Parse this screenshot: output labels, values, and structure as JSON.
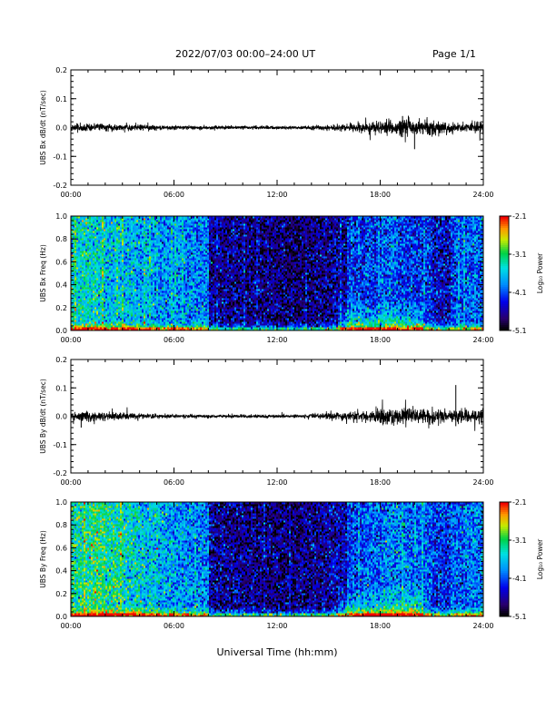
{
  "header": {
    "title": "2022/07/03  00:00–24:00 UT",
    "page": "Page 1/1"
  },
  "footer": {
    "xlabel": "Universal Time (hh:mm)"
  },
  "colors": {
    "trace": "#000000",
    "frame": "#000000",
    "background": "#ffffff"
  },
  "chart_data": [
    {
      "type": "line",
      "ylabel": "UBS Bx dB/dt (nT/sec)",
      "xlim": [
        0,
        24
      ],
      "ylim": [
        -0.2,
        0.2
      ],
      "x_ticks": [
        "00:00",
        "06:00",
        "12:00",
        "18:00",
        "24:00"
      ],
      "y_ticks": [
        "-0.2",
        "-0.1",
        "0.0",
        "0.1",
        "0.2"
      ],
      "series": [
        {
          "x": [
            0,
            1.5,
            3,
            4.5,
            6,
            7.5,
            9,
            10.5,
            12,
            13.5,
            15,
            16.5,
            17.5,
            18.5,
            19.5,
            20.5,
            21.5,
            22.5,
            23.5,
            24
          ],
          "envelope": [
            0.012,
            0.012,
            0.01,
            0.008,
            0.006,
            0.006,
            0.005,
            0.005,
            0.005,
            0.006,
            0.008,
            0.012,
            0.018,
            0.025,
            0.03,
            0.03,
            0.02,
            0.015,
            0.015,
            0.02
          ]
        }
      ],
      "annotations": [
        {
          "x": 20.0,
          "y": -0.075
        },
        {
          "x": 19.3,
          "y": 0.04
        },
        {
          "x": 23.8,
          "y": -0.045
        }
      ]
    },
    {
      "type": "heatmap",
      "ylabel": "UBS Bx Freq (Hz)",
      "xlim": [
        0,
        24
      ],
      "ylim": [
        0,
        1.0
      ],
      "x_ticks": [
        "00:00",
        "06:00",
        "12:00",
        "18:00",
        "24:00"
      ],
      "y_ticks": [
        "0.0",
        "0.2",
        "0.4",
        "0.6",
        "0.8",
        "1.0"
      ],
      "colorbar": {
        "label": "Log₁₀ Power",
        "range": [
          -5.1,
          -2.1
        ],
        "ticks": [
          "-2.1",
          "-3.1",
          "-4.1",
          "-5.1"
        ]
      },
      "activity_level": [
        0.55,
        0.55,
        0.5,
        0.48,
        0.45,
        0.42,
        0.4,
        0.4,
        0.15,
        0.15,
        0.12,
        0.12,
        0.1,
        0.1,
        0.12,
        0.15,
        0.28,
        0.3,
        0.35,
        0.3,
        0.28,
        0.2,
        0.32,
        0.35
      ]
    },
    {
      "type": "line",
      "ylabel": "UBS By dB/dt (nT/sec)",
      "xlim": [
        0,
        24
      ],
      "ylim": [
        -0.2,
        0.2
      ],
      "x_ticks": [
        "00:00",
        "06:00",
        "12:00",
        "18:00",
        "24:00"
      ],
      "y_ticks": [
        "-0.2",
        "-0.1",
        "0.0",
        "0.1",
        "0.2"
      ],
      "series": [
        {
          "x": [
            0,
            1.5,
            3,
            4.5,
            6,
            7.5,
            9,
            10.5,
            12,
            13.5,
            15,
            16.5,
            17.5,
            18.5,
            19.5,
            20.5,
            21.5,
            22.5,
            23.5,
            24
          ],
          "envelope": [
            0.018,
            0.015,
            0.01,
            0.008,
            0.006,
            0.005,
            0.005,
            0.005,
            0.005,
            0.006,
            0.01,
            0.015,
            0.022,
            0.028,
            0.03,
            0.025,
            0.02,
            0.02,
            0.02,
            0.02
          ]
        }
      ],
      "annotations": [
        {
          "x": 22.4,
          "y": 0.11
        },
        {
          "x": 0.6,
          "y": -0.04
        },
        {
          "x": 22.4,
          "y": -0.035
        }
      ]
    },
    {
      "type": "heatmap",
      "ylabel": "UBS By Freq (Hz)",
      "xlim": [
        0,
        24
      ],
      "ylim": [
        0,
        1.0
      ],
      "x_ticks": [
        "00:00",
        "06:00",
        "12:00",
        "18:00",
        "24:00"
      ],
      "y_ticks": [
        "0.0",
        "0.2",
        "0.4",
        "0.6",
        "0.8",
        "1.0"
      ],
      "colorbar": {
        "label": "Log₁₀ Power",
        "range": [
          -5.1,
          -2.1
        ],
        "ticks": [
          "-2.1",
          "-3.1",
          "-4.1",
          "-5.1"
        ]
      },
      "activity_level": [
        0.6,
        0.65,
        0.6,
        0.55,
        0.5,
        0.45,
        0.42,
        0.4,
        0.15,
        0.15,
        0.12,
        0.12,
        0.1,
        0.12,
        0.15,
        0.18,
        0.3,
        0.35,
        0.4,
        0.38,
        0.35,
        0.28,
        0.35,
        0.38
      ]
    }
  ]
}
